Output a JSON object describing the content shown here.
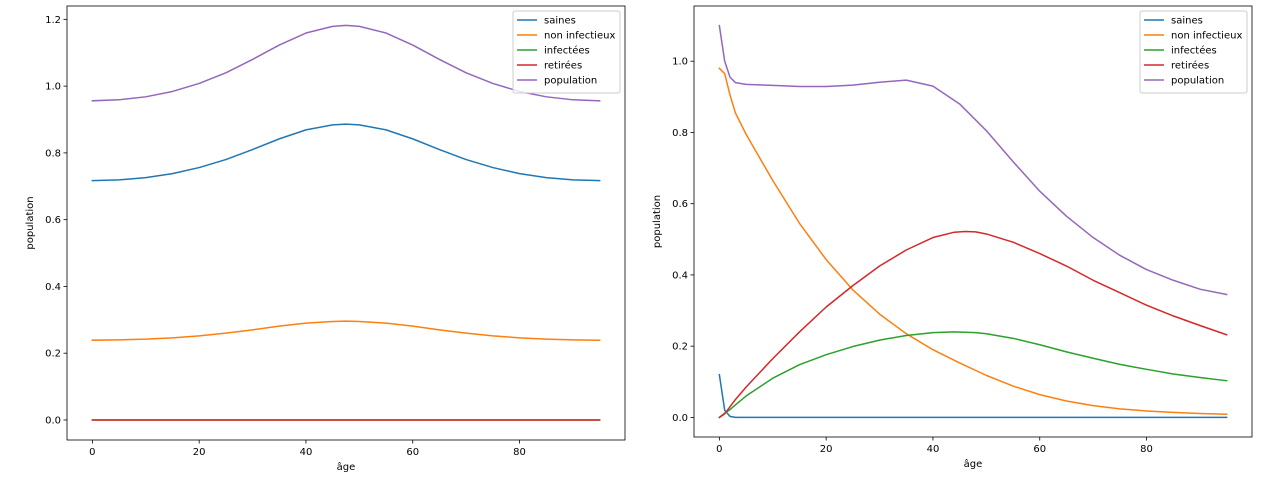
{
  "chart_data": [
    {
      "type": "line",
      "xlabel": "âge",
      "ylabel": "population",
      "xlim": [
        -4.75,
        99.75
      ],
      "ylim": [
        -0.06,
        1.24
      ],
      "xticks": [
        0,
        20,
        40,
        60,
        80
      ],
      "xtick_labels": [
        "0",
        "20",
        "40",
        "60",
        "80"
      ],
      "yticks": [
        0.0,
        0.2,
        0.4,
        0.6,
        0.8,
        1.0,
        1.2
      ],
      "ytick_labels": [
        "0.0",
        "0.2",
        "0.4",
        "0.6",
        "0.8",
        "1.0",
        "1.2"
      ],
      "legend_position": "top-right",
      "series": [
        {
          "name": "saines",
          "color": "#1f77b4",
          "x": [
            0,
            5,
            10,
            15,
            20,
            25,
            30,
            35,
            40,
            45,
            47.5,
            50,
            55,
            60,
            65,
            70,
            75,
            80,
            85,
            90,
            95
          ],
          "values": [
            0.717,
            0.719,
            0.726,
            0.738,
            0.756,
            0.78,
            0.81,
            0.842,
            0.869,
            0.884,
            0.886,
            0.884,
            0.869,
            0.842,
            0.81,
            0.78,
            0.756,
            0.738,
            0.726,
            0.719,
            0.717
          ]
        },
        {
          "name": "non infectieux",
          "color": "#ff7f0e",
          "x": [
            0,
            5,
            10,
            15,
            20,
            25,
            30,
            35,
            40,
            45,
            47.5,
            50,
            55,
            60,
            65,
            70,
            75,
            80,
            85,
            90,
            95
          ],
          "values": [
            0.239,
            0.24,
            0.242,
            0.246,
            0.252,
            0.26,
            0.27,
            0.281,
            0.29,
            0.295,
            0.296,
            0.295,
            0.29,
            0.281,
            0.27,
            0.26,
            0.252,
            0.246,
            0.242,
            0.24,
            0.239
          ]
        },
        {
          "name": "infectées",
          "color": "#2ca02c",
          "x": [
            0,
            95
          ],
          "values": [
            0.0,
            0.0
          ]
        },
        {
          "name": "retirées",
          "color": "#d62728",
          "x": [
            0,
            95
          ],
          "values": [
            0.0,
            0.0
          ]
        },
        {
          "name": "population",
          "color": "#9467bd",
          "x": [
            0,
            5,
            10,
            15,
            20,
            25,
            30,
            35,
            40,
            45,
            47.5,
            50,
            55,
            60,
            65,
            70,
            75,
            80,
            85,
            90,
            95
          ],
          "values": [
            0.956,
            0.959,
            0.968,
            0.984,
            1.008,
            1.04,
            1.08,
            1.123,
            1.159,
            1.179,
            1.182,
            1.179,
            1.159,
            1.123,
            1.08,
            1.04,
            1.008,
            0.984,
            0.968,
            0.959,
            0.956
          ]
        }
      ]
    },
    {
      "type": "line",
      "xlabel": "âge",
      "ylabel": "population",
      "xlim": [
        -4.75,
        99.75
      ],
      "ylim": [
        -0.055,
        1.155
      ],
      "xticks": [
        0,
        20,
        40,
        60,
        80
      ],
      "xtick_labels": [
        "0",
        "20",
        "40",
        "60",
        "80"
      ],
      "yticks": [
        0.0,
        0.2,
        0.4,
        0.6,
        0.8,
        1.0
      ],
      "ytick_labels": [
        "0.0",
        "0.2",
        "0.4",
        "0.6",
        "0.8",
        "1.0"
      ],
      "legend_position": "top-right",
      "series": [
        {
          "name": "saines",
          "color": "#1f77b4",
          "x": [
            0,
            1,
            2,
            3,
            5,
            10,
            20,
            40,
            60,
            80,
            95
          ],
          "values": [
            0.12,
            0.02,
            0.003,
            0.0,
            0.0,
            0.0,
            0.0,
            0.0,
            0.0,
            0.0,
            0.0
          ]
        },
        {
          "name": "non infectieux",
          "color": "#ff7f0e",
          "x": [
            0,
            1,
            2,
            3,
            5,
            10,
            15,
            20,
            25,
            30,
            35,
            40,
            45,
            50,
            55,
            60,
            65,
            70,
            75,
            80,
            85,
            90,
            95
          ],
          "values": [
            0.98,
            0.965,
            0.905,
            0.855,
            0.795,
            0.665,
            0.545,
            0.443,
            0.358,
            0.29,
            0.235,
            0.19,
            0.153,
            0.118,
            0.088,
            0.064,
            0.046,
            0.033,
            0.024,
            0.018,
            0.014,
            0.011,
            0.009
          ]
        },
        {
          "name": "infectées",
          "color": "#2ca02c",
          "x": [
            0,
            1,
            2,
            3,
            5,
            10,
            15,
            20,
            25,
            30,
            35,
            40,
            44,
            48,
            50,
            55,
            60,
            65,
            70,
            75,
            80,
            85,
            90,
            95
          ],
          "values": [
            0.0,
            0.012,
            0.022,
            0.035,
            0.06,
            0.11,
            0.148,
            0.176,
            0.199,
            0.217,
            0.23,
            0.238,
            0.24,
            0.238,
            0.235,
            0.222,
            0.204,
            0.184,
            0.166,
            0.149,
            0.135,
            0.122,
            0.112,
            0.103
          ]
        },
        {
          "name": "retirées",
          "color": "#d62728",
          "x": [
            0,
            1,
            2,
            3,
            5,
            10,
            15,
            20,
            25,
            30,
            35,
            40,
            44,
            46,
            48,
            50,
            55,
            60,
            65,
            70,
            75,
            80,
            85,
            90,
            95
          ],
          "values": [
            0.0,
            0.01,
            0.03,
            0.05,
            0.085,
            0.165,
            0.24,
            0.31,
            0.37,
            0.425,
            0.47,
            0.505,
            0.52,
            0.522,
            0.521,
            0.515,
            0.492,
            0.46,
            0.425,
            0.385,
            0.35,
            0.315,
            0.285,
            0.258,
            0.232
          ]
        },
        {
          "name": "population",
          "color": "#9467bd",
          "x": [
            0,
            1,
            2,
            3,
            5,
            10,
            15,
            20,
            25,
            30,
            35,
            40,
            45,
            50,
            55,
            60,
            65,
            70,
            75,
            80,
            85,
            90,
            95
          ],
          "values": [
            1.1,
            1.0,
            0.955,
            0.94,
            0.935,
            0.932,
            0.929,
            0.929,
            0.933,
            0.941,
            0.947,
            0.93,
            0.88,
            0.805,
            0.718,
            0.635,
            0.565,
            0.505,
            0.455,
            0.415,
            0.385,
            0.36,
            0.345
          ]
        }
      ]
    }
  ]
}
